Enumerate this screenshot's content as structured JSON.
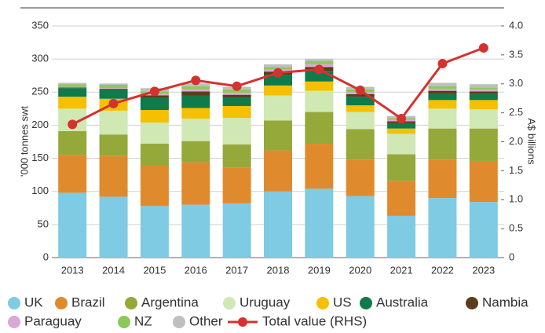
{
  "chart_data": {
    "type": "bar",
    "stacked": true,
    "y_label": "'000 tonnes swt",
    "y2_label": "A$ billions",
    "categories": [
      "2013",
      "2014",
      "2015",
      "2016",
      "2017",
      "2018",
      "2019",
      "2020",
      "2021",
      "2022",
      "2023"
    ],
    "ylim": [
      0,
      350
    ],
    "yticks": [
      0,
      50,
      100,
      150,
      200,
      250,
      300,
      350
    ],
    "y2lim": [
      0,
      4
    ],
    "y2ticks": [
      0,
      0.5,
      {
        "value": 1,
        "label": "1.0"
      },
      1.5,
      {
        "value": 2,
        "label": "2.0"
      },
      2.5,
      {
        "value": 3,
        "label": "3.0"
      },
      3.5,
      {
        "value": 4,
        "label": "4.0"
      }
    ],
    "grid": true,
    "legend": "bottom",
    "series": [
      {
        "name": "UK",
        "color": "#7ecbe3",
        "values": [
          98,
          92,
          78,
          80,
          82,
          100,
          104,
          93,
          63,
          90,
          84
        ]
      },
      {
        "name": "Brazil",
        "color": "#e08a2e",
        "values": [
          57,
          62,
          62,
          64,
          54,
          62,
          68,
          55,
          53,
          58,
          62
        ]
      },
      {
        "name": "Argentina",
        "color": "#95a83a",
        "values": [
          36,
          32,
          32,
          32,
          35,
          45,
          48,
          46,
          40,
          47,
          49
        ]
      },
      {
        "name": "Uruguay",
        "color": "#cfe8b4",
        "values": [
          34,
          36,
          32,
          34,
          40,
          38,
          32,
          26,
          31,
          30,
          29
        ]
      },
      {
        "name": "US",
        "color": "#f5c000",
        "values": [
          18,
          18,
          19,
          16,
          18,
          15,
          14,
          10,
          8,
          13,
          14
        ]
      },
      {
        "name": "Australia",
        "color": "#0f7a4a",
        "values": [
          13,
          14,
          18,
          19,
          13,
          16,
          16,
          13,
          8,
          9,
          9
        ]
      },
      {
        "name": "Nambia",
        "color": "#5b3d1e",
        "values": [
          1,
          1,
          4,
          6,
          4,
          5,
          6,
          4,
          3,
          5,
          4
        ]
      },
      {
        "name": "Paraguay",
        "color": "#d9a9d6",
        "values": [
          1,
          1,
          2,
          3,
          3,
          3,
          4,
          3,
          2,
          3,
          3
        ]
      },
      {
        "name": "NZ",
        "color": "#8cc85a",
        "values": [
          4,
          5,
          4,
          5,
          5,
          4,
          5,
          4,
          3,
          4,
          3
        ]
      },
      {
        "name": "Other",
        "color": "#bfbfbf",
        "values": [
          2,
          2,
          5,
          4,
          4,
          4,
          3,
          4,
          3,
          5,
          5
        ]
      },
      {
        "name": "Total value (RHS)",
        "color": "#d5322e",
        "type": "line",
        "axis": "y2",
        "values": [
          2.3,
          2.66,
          2.87,
          3.06,
          2.96,
          3.19,
          3.25,
          2.89,
          2.4,
          3.35,
          3.62
        ]
      }
    ]
  }
}
